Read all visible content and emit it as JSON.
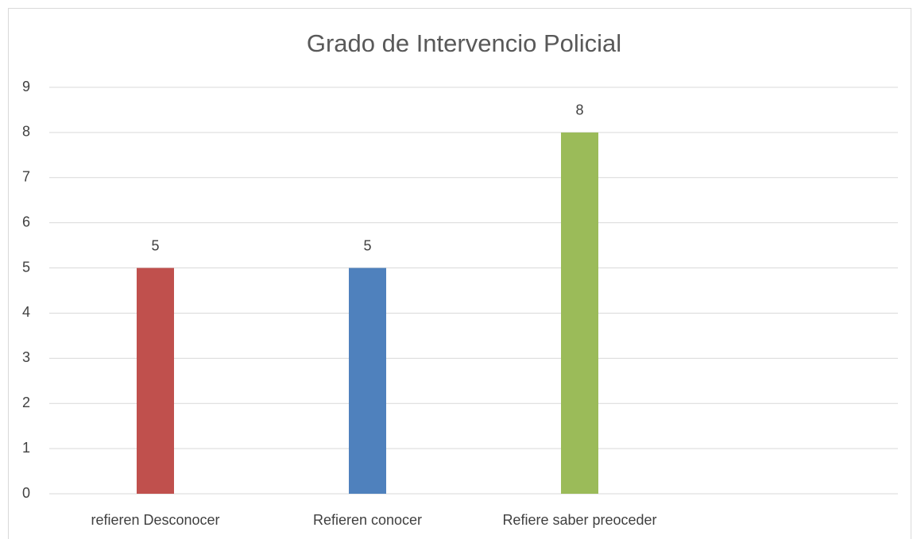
{
  "chart_data": {
    "type": "bar",
    "title": "Grado de Intervencio Policial",
    "categories": [
      "refieren Desconocer",
      "Refieren conocer",
      "Refiere saber preoceder",
      null
    ],
    "values": [
      5,
      5,
      8,
      null
    ],
    "colors": [
      "#c0504d",
      "#4f81bd",
      "#9bbb59",
      null
    ],
    "ylim": [
      0,
      9
    ],
    "yticks": [
      0,
      1,
      2,
      3,
      4,
      5,
      6,
      7,
      8,
      9
    ],
    "grid": true
  }
}
